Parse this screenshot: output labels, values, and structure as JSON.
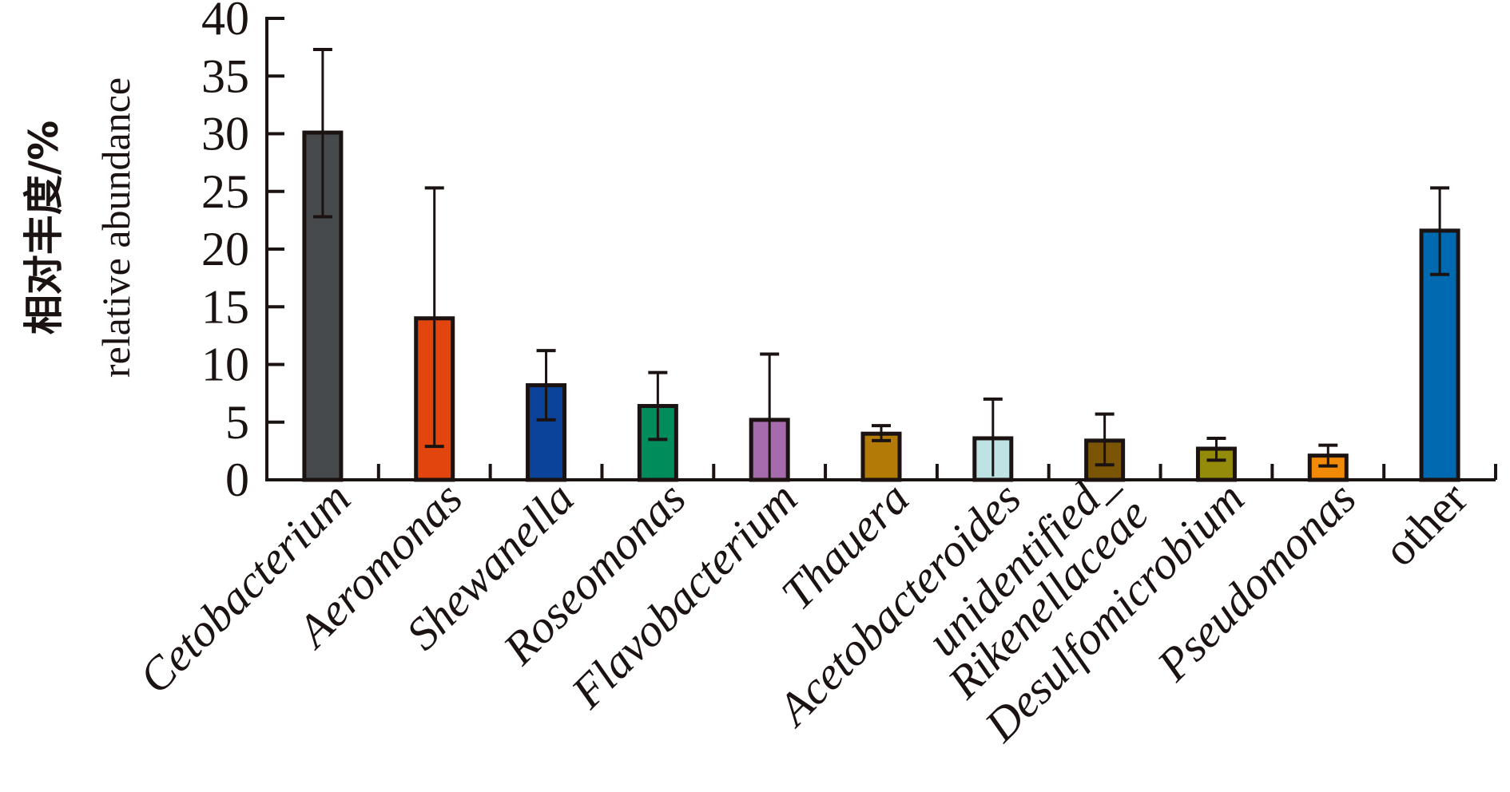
{
  "chart_data": {
    "type": "bar",
    "title": "",
    "xlabel": "",
    "ylabel_cn": "相对丰度/%",
    "ylabel": "relative abundance",
    "ylim": [
      0,
      40
    ],
    "yticks": [
      0,
      5,
      10,
      15,
      20,
      25,
      30,
      35,
      40
    ],
    "grid": false,
    "categories": [
      {
        "lines": [
          "Cetobacterium"
        ],
        "italic": true
      },
      {
        "lines": [
          "Aeromonas"
        ],
        "italic": true
      },
      {
        "lines": [
          "Shewanella"
        ],
        "italic": true
      },
      {
        "lines": [
          "Roseomonas"
        ],
        "italic": true
      },
      {
        "lines": [
          "Flavobacterium"
        ],
        "italic": true
      },
      {
        "lines": [
          "Thauera"
        ],
        "italic": true
      },
      {
        "lines": [
          "Acetobacteroides"
        ],
        "italic": true
      },
      {
        "lines": [
          "unidentified_",
          "Rikenellaceae"
        ],
        "italic": true
      },
      {
        "lines": [
          "Desulfomicrobium"
        ],
        "italic": true
      },
      {
        "lines": [
          "Pseudomonas"
        ],
        "italic": true
      },
      {
        "lines": [
          "other"
        ],
        "italic": false
      }
    ],
    "values": [
      30.1,
      14.0,
      8.2,
      6.4,
      5.2,
      4.0,
      3.6,
      3.4,
      2.7,
      2.1,
      21.6
    ],
    "error_high": [
      37.3,
      25.3,
      11.2,
      9.3,
      10.9,
      4.7,
      7.0,
      5.7,
      3.6,
      3.0,
      25.3
    ],
    "error_low": [
      22.8,
      2.9,
      5.2,
      3.5,
      0.0,
      3.4,
      0.3,
      1.3,
      1.7,
      1.2,
      17.8
    ],
    "colors": [
      "#474a4c",
      "#e3450f",
      "#0b439a",
      "#008d5b",
      "#a56bad",
      "#b37a07",
      "#bfe3e4",
      "#7a5506",
      "#948b0b",
      "#f08a07",
      "#0069b0"
    ],
    "edge_color": "#1a1311"
  }
}
